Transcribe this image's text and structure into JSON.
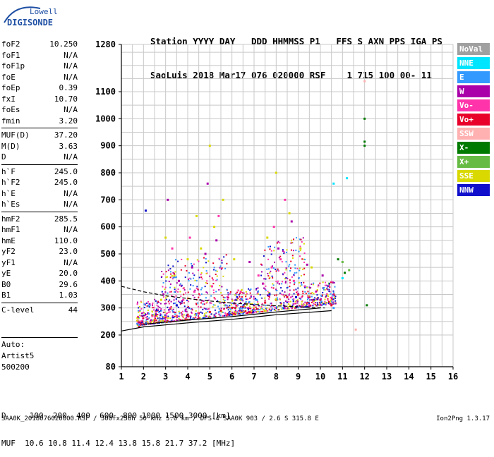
{
  "logo": {
    "line1": "Lowell",
    "line2": "DIGISONDE",
    "accent": "#1e4fa3"
  },
  "header": {
    "labels": "Station YYYY DAY   DDD HHMMSS P1   FFS S AXN PPS IGA PS",
    "values": "SaoLuis 2018 Mar17 076 020000 RSF    1 715 100 00- 11"
  },
  "params": {
    "group1": [
      {
        "name": "foF2",
        "value": "10.250"
      },
      {
        "name": "foF1",
        "value": "N/A"
      },
      {
        "name": "foF1p",
        "value": "N/A"
      },
      {
        "name": "foE",
        "value": "N/A"
      },
      {
        "name": "foEp",
        "value": "0.39"
      },
      {
        "name": "fxI",
        "value": "10.70"
      },
      {
        "name": "foEs",
        "value": "N/A"
      },
      {
        "name": "fmin",
        "value": "3.20"
      }
    ],
    "group2": [
      {
        "name": "MUF(D)",
        "value": "37.20"
      },
      {
        "name": "M(D)",
        "value": "3.63"
      },
      {
        "name": "D",
        "value": "N/A"
      }
    ],
    "group3": [
      {
        "name": "h`F",
        "value": "245.0"
      },
      {
        "name": "h`F2",
        "value": "245.0"
      },
      {
        "name": "h`E",
        "value": "N/A"
      },
      {
        "name": "h`Es",
        "value": "N/A"
      }
    ],
    "group4": [
      {
        "name": "hmF2",
        "value": "285.5"
      },
      {
        "name": "hmF1",
        "value": "N/A"
      },
      {
        "name": "hmE",
        "value": "110.0"
      },
      {
        "name": "yF2",
        "value": "23.0"
      },
      {
        "name": "yF1",
        "value": "N/A"
      },
      {
        "name": "yE",
        "value": "20.0"
      },
      {
        "name": "B0",
        "value": "29.6"
      },
      {
        "name": "B1",
        "value": "1.03"
      }
    ],
    "group5": [
      {
        "name": "C-level",
        "value": "44"
      }
    ]
  },
  "auto": {
    "line1": "Auto:",
    "line2": "Artist5",
    "line3": "500200"
  },
  "legend": [
    {
      "label": "NoVal",
      "color": "#a0a0a0"
    },
    {
      "label": "NNE",
      "color": "#00e5ff"
    },
    {
      "label": "E",
      "color": "#3399ff"
    },
    {
      "label": "W",
      "color": "#aa00aa"
    },
    {
      "label": "Vo-",
      "color": "#ff33aa"
    },
    {
      "label": "Vo+",
      "color": "#e8002a"
    },
    {
      "label": "SSW",
      "color": "#ffb0b0"
    },
    {
      "label": "X-",
      "color": "#007a00"
    },
    {
      "label": "X+",
      "color": "#66bb44"
    },
    {
      "label": "SSE",
      "color": "#d9d900"
    },
    {
      "label": "NNW",
      "color": "#1010cc"
    }
  ],
  "bottom": {
    "d_row": "D     100  200  400  600  800 1000 1500 3000 [km]",
    "muf_row": "MUF  10.6 10.8 11.4 12.4 13.8 15.8 21.7 37.2 [MHz]"
  },
  "footer": "SAA0K_2018076020000.RSF / 300fx256h 50 kHz 5.0 km / DPS-4 SAA0K 903 / 2.6 S 315.8 E",
  "version": "Ion2Png 1.3.17",
  "chart_data": {
    "type": "scatter",
    "x_ticks": [
      1,
      2,
      3,
      4,
      5,
      6,
      7,
      8,
      9,
      10,
      11,
      12,
      13,
      14,
      15,
      16
    ],
    "y_ticks": [
      80,
      200,
      300,
      400,
      500,
      600,
      700,
      800,
      900,
      1000,
      1100,
      1280
    ],
    "xlim": [
      1,
      16
    ],
    "ylim": [
      80,
      1280
    ],
    "grid": true,
    "yscale": "nonlinear",
    "series": [
      {
        "color": "#e8002a",
        "points": [
          [
            1.8,
            230
          ],
          [
            2.0,
            240
          ],
          [
            2.5,
            255
          ],
          [
            3.0,
            265
          ],
          [
            3.5,
            270
          ],
          [
            4.0,
            275
          ],
          [
            4.5,
            280
          ],
          [
            5.0,
            285
          ],
          [
            5.5,
            290
          ],
          [
            6.0,
            300
          ],
          [
            6.5,
            305
          ],
          [
            7.0,
            310
          ],
          [
            7.5,
            320
          ],
          [
            8.0,
            330
          ],
          [
            8.5,
            340
          ],
          [
            9.0,
            350
          ],
          [
            9.5,
            340
          ],
          [
            10.0,
            330
          ],
          [
            10.5,
            310
          ]
        ]
      },
      {
        "color": "#ff33aa",
        "points": [
          [
            1.9,
            250
          ],
          [
            2.4,
            270
          ],
          [
            3.2,
            300
          ],
          [
            3.8,
            330
          ],
          [
            4.3,
            360
          ],
          [
            5.1,
            380
          ],
          [
            5.8,
            340
          ],
          [
            6.4,
            360
          ],
          [
            7.2,
            420
          ],
          [
            7.8,
            450
          ],
          [
            8.2,
            480
          ],
          [
            8.8,
            400
          ],
          [
            9.3,
            380
          ],
          [
            9.8,
            360
          ],
          [
            10.3,
            350
          ],
          [
            3.3,
            520
          ],
          [
            4.1,
            560
          ],
          [
            5.4,
            640
          ],
          [
            7.9,
            600
          ],
          [
            8.4,
            700
          ]
        ]
      },
      {
        "color": "#d9d900",
        "points": [
          [
            2.8,
            330
          ],
          [
            3.4,
            420
          ],
          [
            4.0,
            480
          ],
          [
            4.6,
            520
          ],
          [
            5.2,
            600
          ],
          [
            5.6,
            700
          ],
          [
            6.1,
            480
          ],
          [
            7.6,
            560
          ],
          [
            8.0,
            800
          ],
          [
            8.6,
            650
          ],
          [
            9.1,
            520
          ],
          [
            9.6,
            450
          ],
          [
            3.0,
            560
          ],
          [
            4.4,
            640
          ],
          [
            5.0,
            900
          ]
        ]
      },
      {
        "color": "#aa00aa",
        "points": [
          [
            2.2,
            280
          ],
          [
            2.9,
            350
          ],
          [
            3.6,
            400
          ],
          [
            4.2,
            450
          ],
          [
            4.8,
            500
          ],
          [
            5.3,
            550
          ],
          [
            6.8,
            470
          ],
          [
            7.4,
            390
          ],
          [
            8.1,
            520
          ],
          [
            8.7,
            620
          ],
          [
            9.4,
            460
          ],
          [
            10.1,
            420
          ],
          [
            3.1,
            700
          ],
          [
            4.9,
            760
          ]
        ]
      },
      {
        "color": "#3399ff",
        "points": [
          [
            3.9,
            290
          ],
          [
            5.7,
            310
          ],
          [
            7.1,
            330
          ],
          [
            8.3,
            300
          ],
          [
            9.2,
            310
          ],
          [
            10.0,
            320
          ],
          [
            10.6,
            300
          ]
        ]
      },
      {
        "color": "#1010cc",
        "points": [
          [
            3.5,
            310
          ],
          [
            6.2,
            330
          ],
          [
            7.7,
            350
          ],
          [
            8.9,
            340
          ],
          [
            9.7,
            330
          ],
          [
            2.1,
            660
          ]
        ]
      },
      {
        "color": "#007a00",
        "points": [
          [
            12.0,
            1000
          ],
          [
            12.0,
            900
          ],
          [
            12.0,
            915
          ],
          [
            11.1,
            430
          ],
          [
            10.8,
            480
          ],
          [
            12.1,
            310
          ]
        ]
      },
      {
        "color": "#66bb44",
        "points": [
          [
            10.4,
            390
          ],
          [
            11.0,
            470
          ],
          [
            11.3,
            440
          ]
        ]
      },
      {
        "color": "#00e5ff",
        "points": [
          [
            10.6,
            760
          ],
          [
            11.2,
            780
          ],
          [
            11.0,
            410
          ]
        ]
      },
      {
        "color": "#ffb0b0",
        "points": [
          [
            11.6,
            220
          ],
          [
            12.0,
            1140
          ],
          [
            9.9,
            380
          ]
        ]
      }
    ],
    "curves": [
      {
        "name": "lower",
        "points": [
          [
            1.0,
            215
          ],
          [
            2.0,
            230
          ],
          [
            4.0,
            245
          ],
          [
            6.0,
            258
          ],
          [
            8.0,
            275
          ],
          [
            10.5,
            290
          ]
        ]
      },
      {
        "name": "upper",
        "points": [
          [
            1.0,
            380
          ],
          [
            2.0,
            360
          ],
          [
            3.0,
            345
          ],
          [
            4.5,
            330
          ],
          [
            6.0,
            318
          ],
          [
            8.0,
            308
          ],
          [
            10.2,
            300
          ]
        ]
      },
      {
        "name": "inner",
        "points": [
          [
            2.0,
            240
          ],
          [
            4.0,
            255
          ],
          [
            6.0,
            268
          ],
          [
            8.0,
            285
          ],
          [
            10.0,
            300
          ]
        ]
      }
    ]
  }
}
